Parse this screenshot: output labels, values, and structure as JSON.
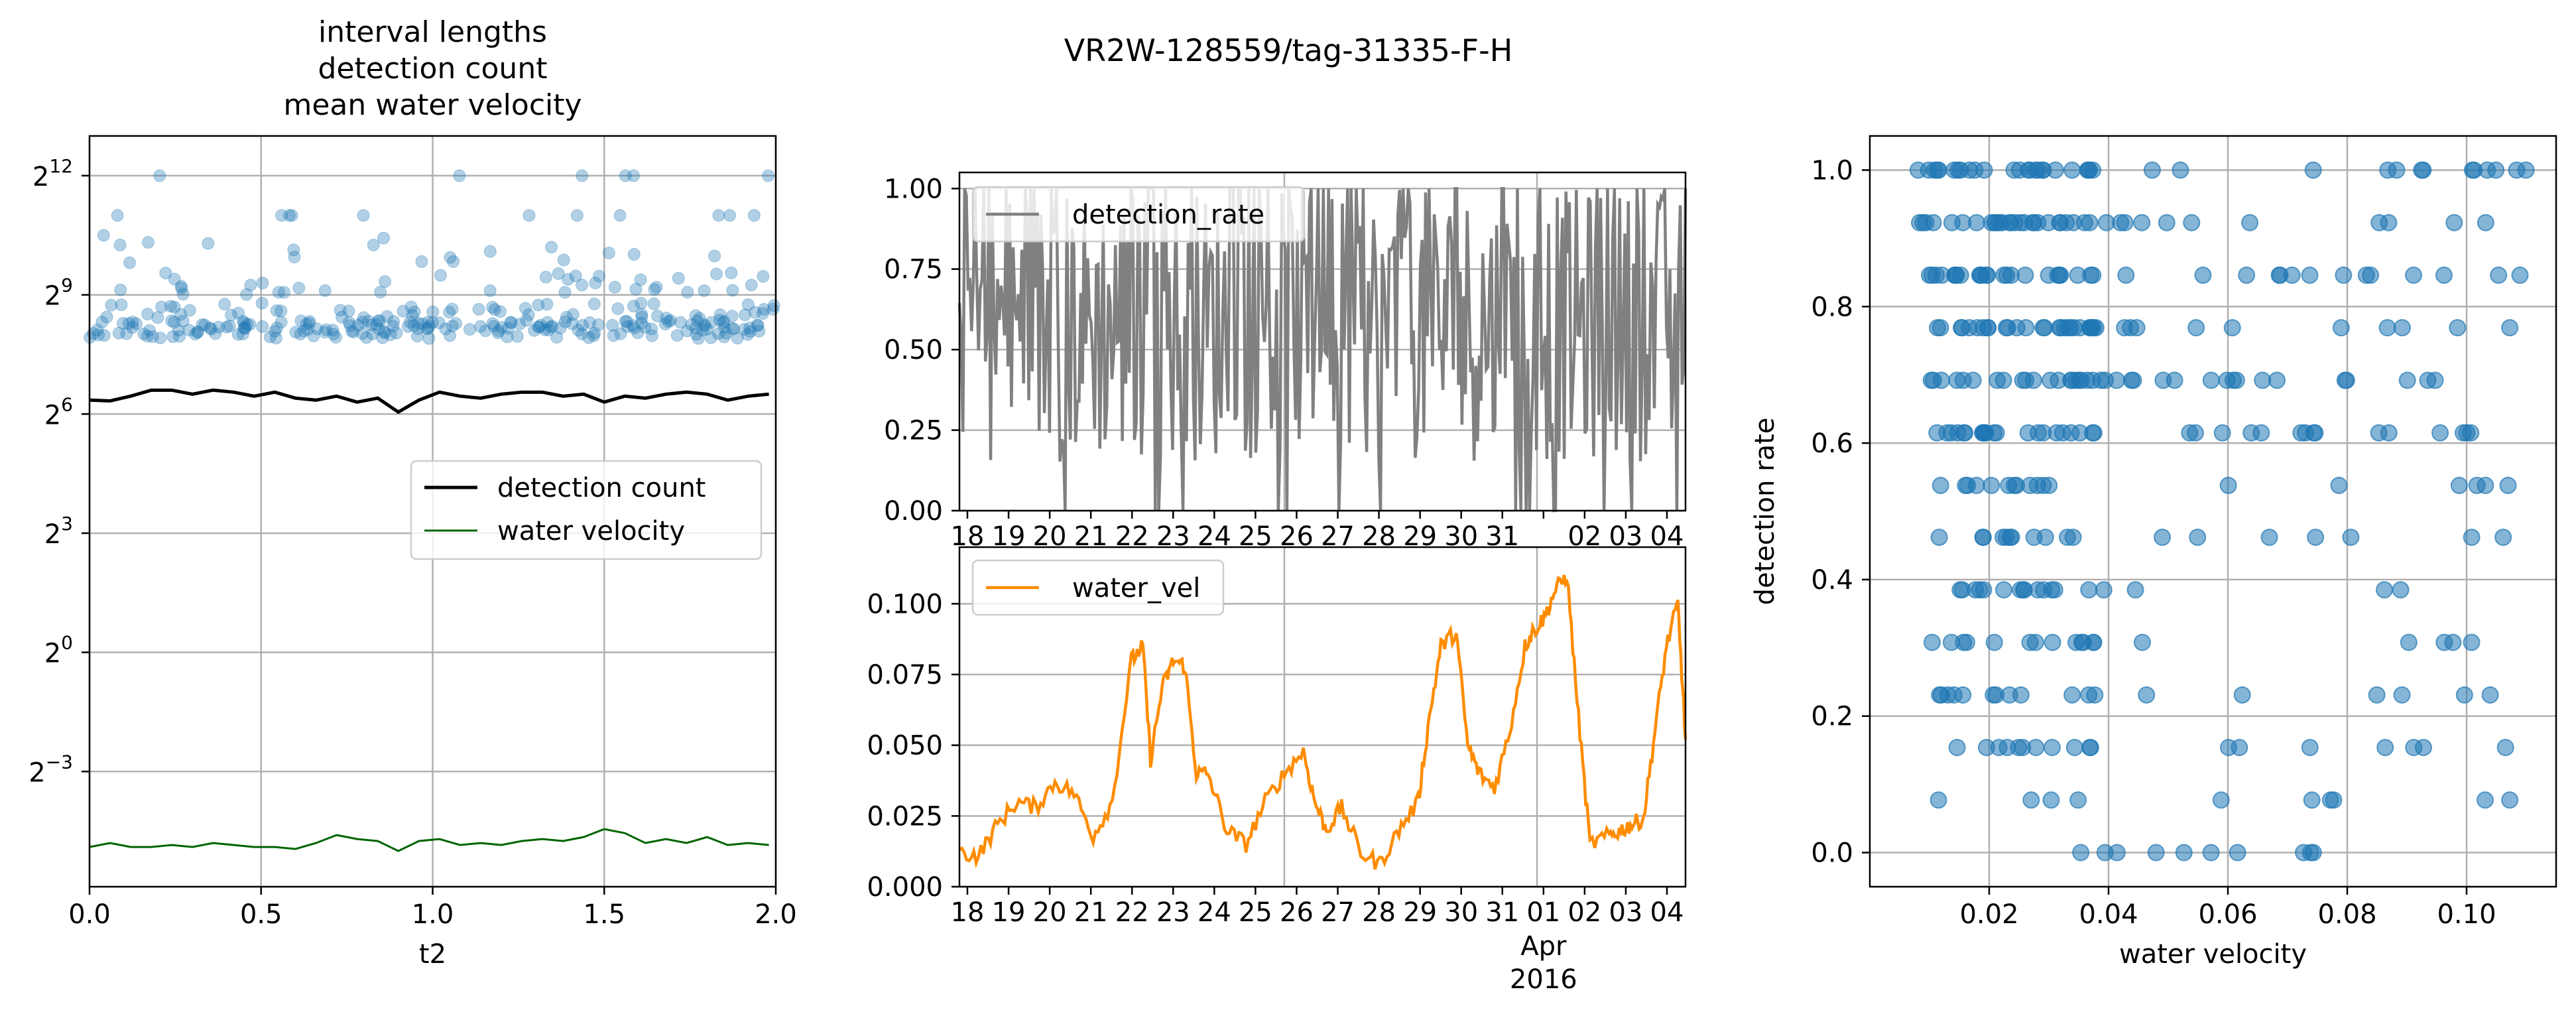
{
  "figure": {
    "suptitle": "VR2W-128559/tag-31335-F-H"
  },
  "chart_data": [
    {
      "id": "left",
      "type": "scatter",
      "title_lines": [
        "interval lengths",
        "detection count",
        "mean water velocity"
      ],
      "xlabel": "t2",
      "ylabel": "",
      "xlim": [
        0,
        2
      ],
      "ylim_log2": [
        -5.9,
        13.0
      ],
      "yscale": "log2",
      "xticks": [
        0,
        0.5,
        1,
        1.5,
        2
      ],
      "xtick_labels": [
        "0.0",
        "0.5",
        "1.0",
        "1.5",
        "2.0"
      ],
      "yticks_log2": [
        12,
        9,
        6,
        3,
        0,
        -3
      ],
      "ytick_labels": [
        "12",
        "9",
        "6",
        "3",
        "0",
        "−3"
      ],
      "grid": true,
      "legend": {
        "placement": "right",
        "entries": [
          "detection count",
          "water velocity"
        ]
      },
      "series": [
        {
          "name": "detection count",
          "color": "#000000",
          "type": "line",
          "x": [
            0.0,
            0.06,
            0.12,
            0.18,
            0.24,
            0.3,
            0.36,
            0.42,
            0.48,
            0.54,
            0.6,
            0.66,
            0.72,
            0.78,
            0.84,
            0.9,
            0.96,
            1.02,
            1.08,
            1.14,
            1.2,
            1.26,
            1.32,
            1.38,
            1.44,
            1.5,
            1.56,
            1.62,
            1.68,
            1.74,
            1.8,
            1.86,
            1.92,
            1.98
          ],
          "y_log2": [
            6.35,
            6.33,
            6.45,
            6.6,
            6.6,
            6.5,
            6.6,
            6.55,
            6.45,
            6.55,
            6.4,
            6.35,
            6.45,
            6.3,
            6.4,
            6.05,
            6.35,
            6.55,
            6.45,
            6.4,
            6.5,
            6.55,
            6.55,
            6.45,
            6.5,
            6.3,
            6.45,
            6.4,
            6.5,
            6.55,
            6.5,
            6.35,
            6.45,
            6.5
          ]
        },
        {
          "name": "water velocity",
          "color": "#006400",
          "type": "line",
          "x": [
            0.0,
            0.06,
            0.12,
            0.18,
            0.24,
            0.3,
            0.36,
            0.42,
            0.48,
            0.54,
            0.6,
            0.66,
            0.72,
            0.78,
            0.84,
            0.9,
            0.96,
            1.02,
            1.08,
            1.14,
            1.2,
            1.26,
            1.32,
            1.38,
            1.44,
            1.5,
            1.56,
            1.62,
            1.68,
            1.74,
            1.8,
            1.86,
            1.92,
            1.98
          ],
          "y_log2": [
            -4.9,
            -4.8,
            -4.9,
            -4.9,
            -4.85,
            -4.9,
            -4.8,
            -4.85,
            -4.9,
            -4.9,
            -4.95,
            -4.8,
            -4.6,
            -4.7,
            -4.75,
            -5.0,
            -4.75,
            -4.7,
            -4.85,
            -4.8,
            -4.85,
            -4.75,
            -4.7,
            -4.75,
            -4.65,
            -4.45,
            -4.55,
            -4.8,
            -4.7,
            -4.8,
            -4.65,
            -4.85,
            -4.8,
            -4.85
          ]
        },
        {
          "name": "interval lengths",
          "color": "#1f77b4",
          "type": "scatter",
          "y_levels_log2": [
            12.0,
            11.0,
            10.4,
            9.8,
            9.4,
            9.0,
            8.6,
            8.3,
            8.1,
            7.9,
            8.0
          ],
          "count": 320
        }
      ]
    },
    {
      "id": "mid-top",
      "type": "line",
      "xlabel": "",
      "ylabel": "",
      "ylim": [
        0,
        1.05
      ],
      "yticks": [
        0.0,
        0.25,
        0.5,
        0.75,
        1.0
      ],
      "ytick_labels": [
        "0.00",
        "0.25",
        "0.50",
        "0.75",
        "1.00"
      ],
      "xtick_labels": [
        "18",
        "19",
        "20",
        "21",
        "22",
        "23",
        "24",
        "25",
        "26",
        "27",
        "28",
        "29",
        "30",
        "31",
        "",
        "02",
        "03",
        "04"
      ],
      "grid": true,
      "legend": {
        "placement": "upper left",
        "entries": [
          "detection_rate"
        ]
      },
      "series": [
        {
          "name": "detection_rate",
          "color": "#808080",
          "sample_points": 420
        }
      ]
    },
    {
      "id": "mid-bottom",
      "type": "line",
      "xlabel": "",
      "ylabel": "",
      "ylim": [
        0,
        0.12
      ],
      "yticks": [
        0.0,
        0.025,
        0.05,
        0.075,
        0.1
      ],
      "ytick_labels": [
        "0.000",
        "0.025",
        "0.050",
        "0.075",
        "0.100"
      ],
      "xtick_labels": [
        "18",
        "19",
        "20",
        "21",
        "22",
        "23",
        "24",
        "25",
        "26",
        "27",
        "28",
        "29",
        "30",
        "31",
        "01",
        "02",
        "03",
        "04"
      ],
      "xtick_sublabels": [
        "Apr",
        "2016"
      ],
      "grid": true,
      "legend": {
        "placement": "upper left",
        "entries": [
          "water_vel"
        ]
      },
      "series": [
        {
          "name": "water_vel",
          "color": "#ff8c00",
          "x_day": [
            17.0,
            17.5,
            18.0,
            18.5,
            19.0,
            19.5,
            20.0,
            20.5,
            21.0,
            21.5,
            21.8,
            22.0,
            22.3,
            22.6,
            22.9,
            23.2,
            23.5,
            24.0,
            24.5,
            25.0,
            25.5,
            26.0,
            26.3,
            26.6,
            27.0,
            27.5,
            28.0,
            28.5,
            29.0,
            29.3,
            29.6,
            30.0,
            30.3,
            30.6,
            31.0,
            31.4,
            31.8,
            32.0,
            32.3,
            32.6,
            32.9,
            33.2,
            33.5,
            34.0,
            34.3,
            34.6,
            34.9,
            35.2,
            35.5,
            35.8,
            36.0
          ],
          "y": [
            0.012,
            0.011,
            0.022,
            0.03,
            0.028,
            0.037,
            0.033,
            0.018,
            0.03,
            0.08,
            0.085,
            0.045,
            0.07,
            0.08,
            0.078,
            0.04,
            0.04,
            0.02,
            0.015,
            0.03,
            0.04,
            0.048,
            0.03,
            0.02,
            0.028,
            0.012,
            0.008,
            0.02,
            0.03,
            0.06,
            0.085,
            0.09,
            0.05,
            0.04,
            0.035,
            0.055,
            0.085,
            0.09,
            0.095,
            0.105,
            0.11,
            0.06,
            0.015,
            0.018,
            0.02,
            0.022,
            0.024,
            0.055,
            0.085,
            0.1,
            0.052
          ]
        }
      ]
    },
    {
      "id": "right",
      "type": "scatter",
      "xlabel": "water velocity",
      "ylabel": "detection rate",
      "xlim": [
        0.0,
        0.115
      ],
      "ylim": [
        -0.05,
        1.05
      ],
      "xticks": [
        0.02,
        0.04,
        0.06,
        0.08,
        0.1
      ],
      "xtick_labels": [
        "0.02",
        "0.04",
        "0.06",
        "0.08",
        "0.10"
      ],
      "yticks": [
        0.0,
        0.2,
        0.4,
        0.6,
        0.8,
        1.0
      ],
      "ytick_labels": [
        "0.0",
        "0.2",
        "0.4",
        "0.6",
        "0.8",
        "1.0"
      ],
      "grid": true,
      "series": [
        {
          "name": "",
          "color": "#1f77b4",
          "y_levels": [
            1.0,
            0.923,
            0.846,
            0.769,
            0.692,
            0.615,
            0.538,
            0.462,
            0.385,
            0.308,
            0.231,
            0.154,
            0.077,
            0.0
          ]
        }
      ]
    }
  ]
}
